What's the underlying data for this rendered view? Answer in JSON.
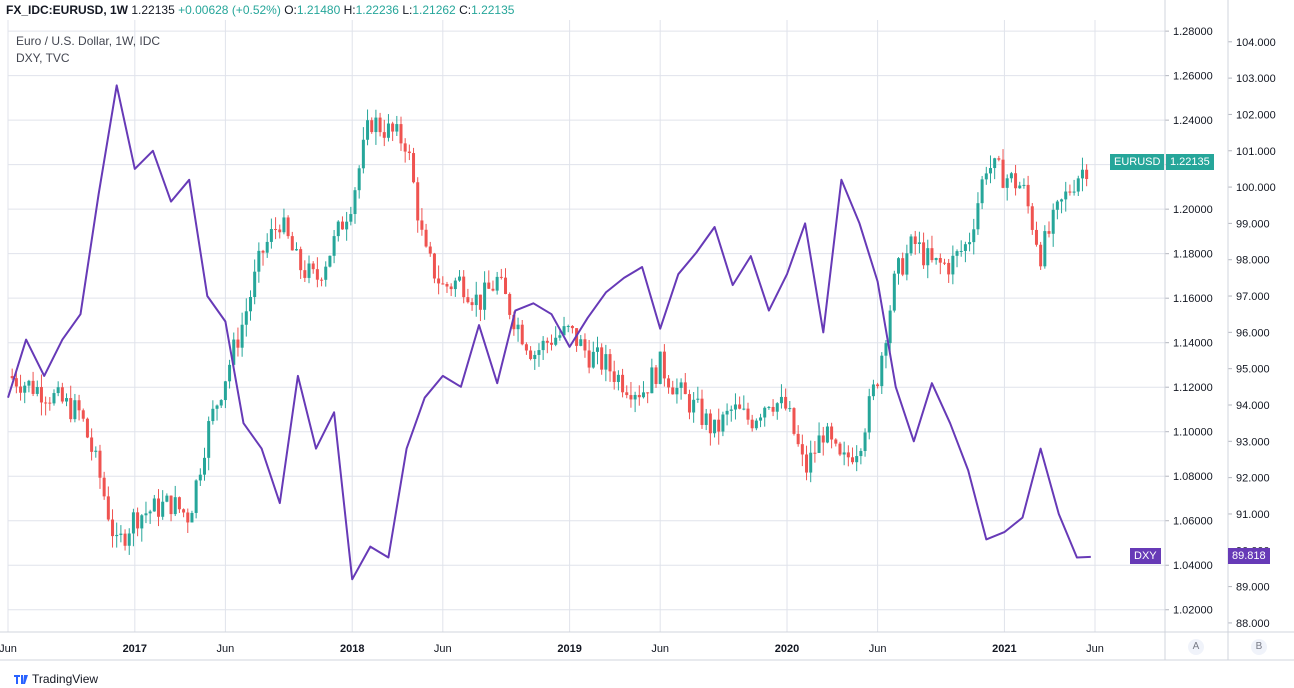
{
  "header": {
    "symbol": "FX_IDC:EURUSD, 1W",
    "last": "1.22135",
    "change": "+0.00628 (+0.52%)",
    "o_label": "O:",
    "o_value": "1.21480",
    "h_label": "H:",
    "h_value": "1.22236",
    "l_label": "L:",
    "l_value": "1.21262",
    "c_label": "C:",
    "c_value": "1.22135"
  },
  "legend": {
    "main": "Euro / U.S. Dollar, 1W, IDC",
    "compare": "DXY, TVC"
  },
  "colors": {
    "up": "#26a69a",
    "down": "#ef5350",
    "dxy": "#673ab7",
    "grid": "#e0e3eb"
  },
  "tags": {
    "eurusd_name": "EURUSD",
    "eurusd_value": "1.22135",
    "dxy_name": "DXY",
    "dxy_value": "89.818"
  },
  "scale_buttons": {
    "a": "A",
    "b": "B"
  },
  "branding": {
    "text": "TradingView",
    "icon": "tradingview-logo-icon"
  },
  "chart_data": {
    "type": "line",
    "x_range": [
      "2016-06",
      "2021-06"
    ],
    "x_ticks": [
      {
        "label": "Jun",
        "at": "2016-06",
        "year": false
      },
      {
        "label": "2017",
        "at": "2017-01",
        "year": true
      },
      {
        "label": "Jun",
        "at": "2017-06",
        "year": false
      },
      {
        "label": "2018",
        "at": "2018-01",
        "year": true
      },
      {
        "label": "Jun",
        "at": "2018-06",
        "year": false
      },
      {
        "label": "2019",
        "at": "2019-01",
        "year": true
      },
      {
        "label": "Jun",
        "at": "2019-06",
        "year": false
      },
      {
        "label": "2020",
        "at": "2020-01",
        "year": true
      },
      {
        "label": "Jun",
        "at": "2020-06",
        "year": false
      },
      {
        "label": "2021",
        "at": "2021-01",
        "year": true
      },
      {
        "label": "Jun",
        "at": "2021-06",
        "year": false
      }
    ],
    "grid": true,
    "axes": {
      "eurusd": {
        "range": [
          1.01,
          1.285
        ],
        "ticks": [
          "1.28000",
          "1.26000",
          "1.24000",
          "1.22000",
          "1.20000",
          "1.18000",
          "1.16000",
          "1.14000",
          "1.12000",
          "1.10000",
          "1.08000",
          "1.06000",
          "1.04000",
          "1.02000"
        ]
      },
      "dxy": {
        "range": [
          87.75,
          104.6
        ],
        "ticks": [
          "104.000",
          "103.000",
          "102.000",
          "101.000",
          "100.000",
          "99.000",
          "98.000",
          "97.000",
          "96.000",
          "95.000",
          "94.000",
          "93.000",
          "92.000",
          "91.000",
          "90.000",
          "89.000",
          "88.000"
        ]
      }
    },
    "series": [
      {
        "name": "EURUSD",
        "style": "candlestick",
        "anchors": [
          [
            "2016-06",
            1.125
          ],
          [
            "2016-08",
            1.118
          ],
          [
            "2016-10",
            1.108
          ],
          [
            "2016-11",
            1.082
          ],
          [
            "2016-12",
            1.048
          ],
          [
            "2017-01",
            1.062
          ],
          [
            "2017-02",
            1.065
          ],
          [
            "2017-03",
            1.068
          ],
          [
            "2017-04",
            1.062
          ],
          [
            "2017-05",
            1.1
          ],
          [
            "2017-06",
            1.125
          ],
          [
            "2017-07",
            1.15
          ],
          [
            "2017-08",
            1.18
          ],
          [
            "2017-09",
            1.195
          ],
          [
            "2017-10",
            1.175
          ],
          [
            "2017-11",
            1.168
          ],
          [
            "2017-12",
            1.185
          ],
          [
            "2018-01",
            1.205
          ],
          [
            "2018-02",
            1.24
          ],
          [
            "2018-03",
            1.235
          ],
          [
            "2018-04",
            1.23
          ],
          [
            "2018-05",
            1.18
          ],
          [
            "2018-06",
            1.165
          ],
          [
            "2018-07",
            1.168
          ],
          [
            "2018-08",
            1.158
          ],
          [
            "2018-09",
            1.168
          ],
          [
            "2018-10",
            1.15
          ],
          [
            "2018-11",
            1.135
          ],
          [
            "2018-12",
            1.142
          ],
          [
            "2019-01",
            1.145
          ],
          [
            "2019-02",
            1.135
          ],
          [
            "2019-03",
            1.13
          ],
          [
            "2019-04",
            1.122
          ],
          [
            "2019-05",
            1.118
          ],
          [
            "2019-06",
            1.13
          ],
          [
            "2019-07",
            1.118
          ],
          [
            "2019-08",
            1.11
          ],
          [
            "2019-09",
            1.1
          ],
          [
            "2019-10",
            1.11
          ],
          [
            "2019-11",
            1.105
          ],
          [
            "2019-12",
            1.115
          ],
          [
            "2020-01",
            1.11
          ],
          [
            "2020-02",
            1.082
          ],
          [
            "2020-03",
            1.1
          ],
          [
            "2020-04",
            1.085
          ],
          [
            "2020-05",
            1.095
          ],
          [
            "2020-06",
            1.125
          ],
          [
            "2020-07",
            1.17
          ],
          [
            "2020-08",
            1.185
          ],
          [
            "2020-09",
            1.175
          ],
          [
            "2020-10",
            1.175
          ],
          [
            "2020-11",
            1.185
          ],
          [
            "2020-12",
            1.22
          ],
          [
            "2021-01",
            1.215
          ],
          [
            "2021-02",
            1.21
          ],
          [
            "2021-03",
            1.18
          ],
          [
            "2021-04",
            1.2
          ],
          [
            "2021-05",
            1.215
          ],
          [
            "2021-05-24",
            1.22135
          ]
        ]
      },
      {
        "name": "DXY",
        "style": "line",
        "points": [
          [
            "2016-06",
            94.2
          ],
          [
            "2016-07",
            95.8
          ],
          [
            "2016-08",
            94.8
          ],
          [
            "2016-09",
            95.8
          ],
          [
            "2016-10",
            96.5
          ],
          [
            "2016-11",
            99.8
          ],
          [
            "2016-12",
            102.8
          ],
          [
            "2017-01",
            100.5
          ],
          [
            "2017-02",
            101.0
          ],
          [
            "2017-03",
            99.6
          ],
          [
            "2017-04",
            100.2
          ],
          [
            "2017-05",
            97.0
          ],
          [
            "2017-06",
            96.3
          ],
          [
            "2017-07",
            93.5
          ],
          [
            "2017-08",
            92.8
          ],
          [
            "2017-09",
            91.3
          ],
          [
            "2017-10",
            94.8
          ],
          [
            "2017-11",
            92.8
          ],
          [
            "2017-12",
            93.8
          ],
          [
            "2018-01",
            89.2
          ],
          [
            "2018-02",
            90.1
          ],
          [
            "2018-03",
            89.8
          ],
          [
            "2018-04",
            92.8
          ],
          [
            "2018-05",
            94.2
          ],
          [
            "2018-06",
            94.8
          ],
          [
            "2018-07",
            94.5
          ],
          [
            "2018-08",
            96.2
          ],
          [
            "2018-09",
            94.6
          ],
          [
            "2018-10",
            96.6
          ],
          [
            "2018-11",
            96.8
          ],
          [
            "2018-12",
            96.5
          ],
          [
            "2019-01",
            95.6
          ],
          [
            "2019-02",
            96.4
          ],
          [
            "2019-03",
            97.1
          ],
          [
            "2019-04",
            97.5
          ],
          [
            "2019-05",
            97.8
          ],
          [
            "2019-06",
            96.1
          ],
          [
            "2019-07",
            97.6
          ],
          [
            "2019-08",
            98.2
          ],
          [
            "2019-09",
            98.9
          ],
          [
            "2019-10",
            97.3
          ],
          [
            "2019-11",
            98.1
          ],
          [
            "2019-12",
            96.6
          ],
          [
            "2020-01",
            97.6
          ],
          [
            "2020-02",
            99.0
          ],
          [
            "2020-03",
            96.0
          ],
          [
            "2020-04",
            100.2
          ],
          [
            "2020-05",
            99.0
          ],
          [
            "2020-06",
            97.4
          ],
          [
            "2020-07",
            94.5
          ],
          [
            "2020-08",
            93.0
          ],
          [
            "2020-09",
            94.6
          ],
          [
            "2020-10",
            93.5
          ],
          [
            "2020-11",
            92.2
          ],
          [
            "2020-12",
            90.3
          ],
          [
            "2021-01",
            90.5
          ],
          [
            "2021-02",
            90.9
          ],
          [
            "2021-03",
            92.8
          ],
          [
            "2021-04",
            91.0
          ],
          [
            "2021-05",
            89.8
          ],
          [
            "2021-05-24",
            89.818
          ]
        ]
      }
    ]
  }
}
